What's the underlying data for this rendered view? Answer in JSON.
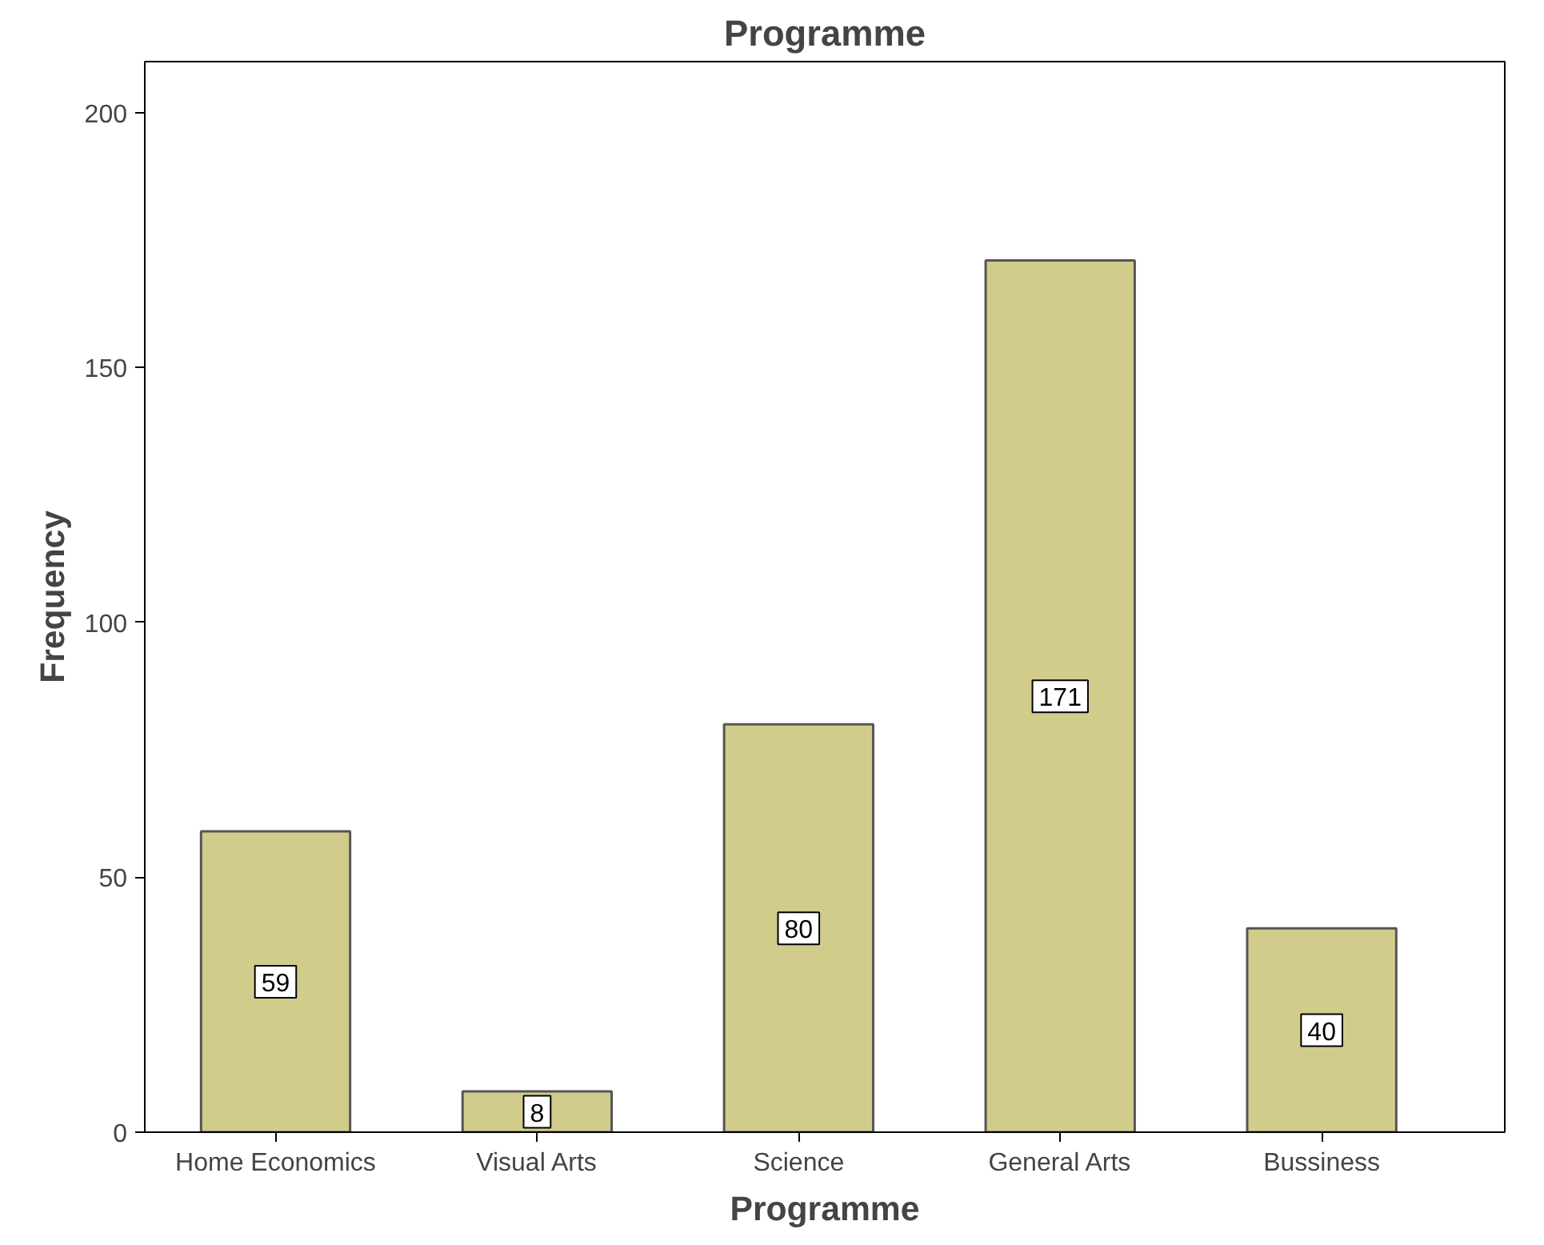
{
  "chart_data": {
    "type": "bar",
    "title": "Programme",
    "xlabel": "Programme",
    "ylabel": "Frequency",
    "categories": [
      "Home Economics",
      "Visual Arts",
      "Science",
      "General Arts",
      "Bussiness"
    ],
    "values": [
      59,
      8,
      80,
      171,
      40
    ],
    "color": "#d2cc8c",
    "ylim": [
      0,
      210
    ],
    "yticks": [
      0,
      50,
      100,
      150,
      200
    ],
    "grid": false,
    "data_labels": true
  }
}
